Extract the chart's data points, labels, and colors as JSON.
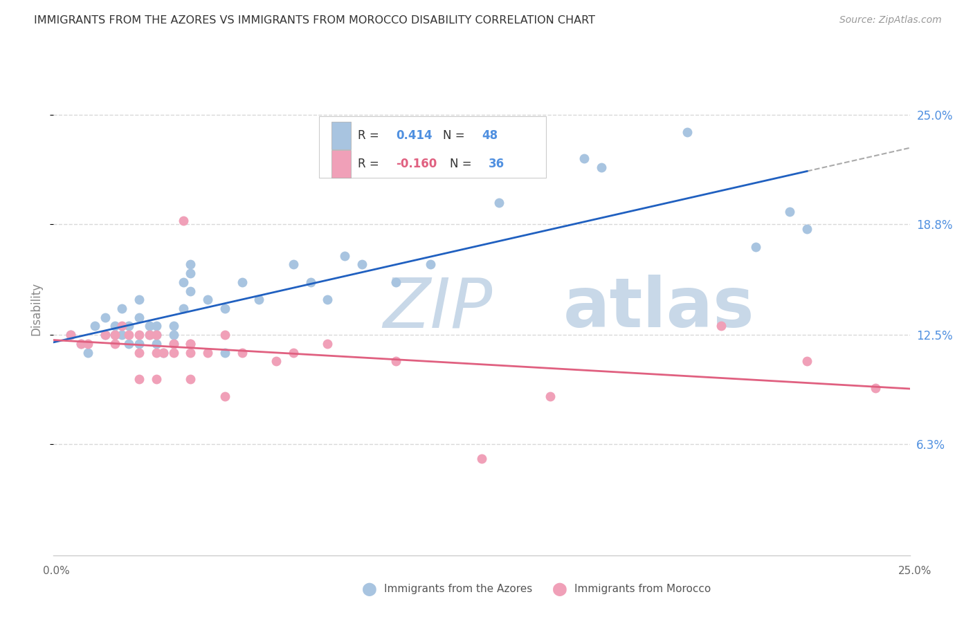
{
  "title": "IMMIGRANTS FROM THE AZORES VS IMMIGRANTS FROM MOROCCO DISABILITY CORRELATION CHART",
  "source": "Source: ZipAtlas.com",
  "ylabel": "Disability",
  "ytick_labels": [
    "25.0%",
    "18.8%",
    "12.5%",
    "6.3%"
  ],
  "ytick_values": [
    0.25,
    0.188,
    0.125,
    0.063
  ],
  "xlim": [
    0.0,
    0.25
  ],
  "ylim": [
    0.0,
    0.28
  ],
  "r_azores": "0.414",
  "n_azores": "48",
  "r_morocco": "-0.160",
  "n_morocco": "36",
  "azores_color": "#a8c4e0",
  "morocco_color": "#f0a0b8",
  "line_azores_color": "#2060c0",
  "line_morocco_color": "#e06080",
  "watermark_zip_color": "#c8d8e8",
  "watermark_atlas_color": "#c8d8e8",
  "right_axis_color": "#5090e0",
  "legend_value_color": "#5090e0",
  "grid_color": "#d8d8d8",
  "azores_x": [
    0.005,
    0.008,
    0.01,
    0.012,
    0.015,
    0.015,
    0.018,
    0.018,
    0.02,
    0.02,
    0.022,
    0.022,
    0.025,
    0.025,
    0.025,
    0.028,
    0.028,
    0.03,
    0.03,
    0.03,
    0.032,
    0.035,
    0.035,
    0.035,
    0.038,
    0.038,
    0.04,
    0.04,
    0.04,
    0.045,
    0.05,
    0.05,
    0.055,
    0.06,
    0.07,
    0.075,
    0.08,
    0.085,
    0.09,
    0.1,
    0.11,
    0.13,
    0.155,
    0.16,
    0.185,
    0.205,
    0.215,
    0.22
  ],
  "azores_y": [
    0.125,
    0.12,
    0.115,
    0.13,
    0.135,
    0.125,
    0.125,
    0.13,
    0.14,
    0.125,
    0.12,
    0.13,
    0.12,
    0.145,
    0.135,
    0.125,
    0.13,
    0.125,
    0.12,
    0.13,
    0.115,
    0.125,
    0.13,
    0.12,
    0.155,
    0.14,
    0.16,
    0.15,
    0.165,
    0.145,
    0.115,
    0.14,
    0.155,
    0.145,
    0.165,
    0.155,
    0.145,
    0.17,
    0.165,
    0.155,
    0.165,
    0.2,
    0.225,
    0.22,
    0.24,
    0.175,
    0.195,
    0.185
  ],
  "morocco_x": [
    0.005,
    0.008,
    0.01,
    0.015,
    0.018,
    0.018,
    0.02,
    0.022,
    0.025,
    0.025,
    0.028,
    0.03,
    0.03,
    0.032,
    0.035,
    0.035,
    0.038,
    0.04,
    0.04,
    0.04,
    0.045,
    0.05,
    0.055,
    0.065,
    0.07,
    0.08,
    0.1,
    0.125,
    0.145,
    0.195,
    0.22,
    0.24,
    0.025,
    0.03,
    0.04,
    0.05
  ],
  "morocco_y": [
    0.125,
    0.12,
    0.12,
    0.125,
    0.12,
    0.125,
    0.13,
    0.125,
    0.115,
    0.125,
    0.125,
    0.115,
    0.125,
    0.115,
    0.115,
    0.12,
    0.19,
    0.12,
    0.115,
    0.12,
    0.115,
    0.125,
    0.115,
    0.11,
    0.115,
    0.12,
    0.11,
    0.055,
    0.09,
    0.13,
    0.11,
    0.095,
    0.1,
    0.1,
    0.1,
    0.09
  ]
}
